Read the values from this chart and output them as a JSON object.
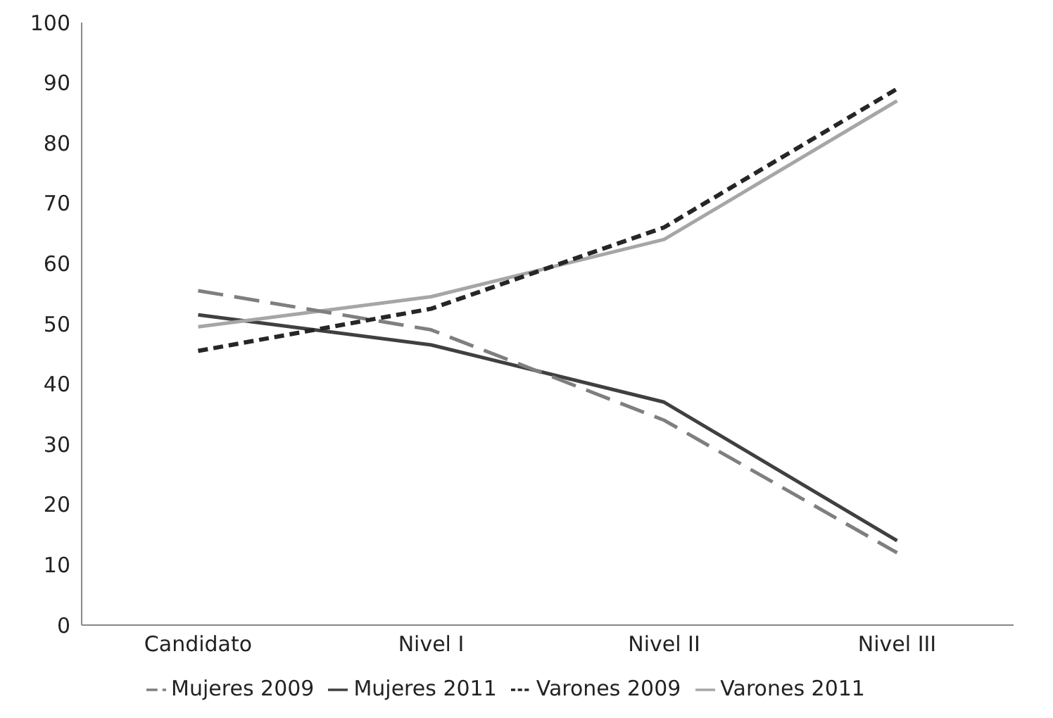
{
  "chart_data": {
    "type": "line",
    "categories": [
      "Candidato",
      "Nivel I",
      "Nivel II",
      "Nivel III"
    ],
    "series": [
      {
        "name": "Mujeres 2011",
        "color": "#404040",
        "line_style": "solid",
        "values": [
          51.5,
          46.5,
          37,
          14
        ]
      },
      {
        "name": "Varones 2011",
        "color": "#a6a6a6",
        "line_style": "solid",
        "values": [
          49.5,
          54.5,
          64,
          87
        ]
      },
      {
        "name": "Mujeres 2009",
        "color": "#7f7f7f",
        "line_style": "dashed",
        "values": [
          55.5,
          49,
          34,
          12
        ]
      },
      {
        "name": "Varones 2009",
        "color": "#262626",
        "line_style": "dotted",
        "values": [
          45.5,
          52.5,
          66,
          89
        ]
      }
    ],
    "ylim": [
      0,
      100
    ],
    "yticks": [
      0,
      10,
      20,
      30,
      40,
      50,
      60,
      70,
      80,
      90,
      100
    ],
    "grid": false,
    "legend": "bottom",
    "marker": "none"
  }
}
